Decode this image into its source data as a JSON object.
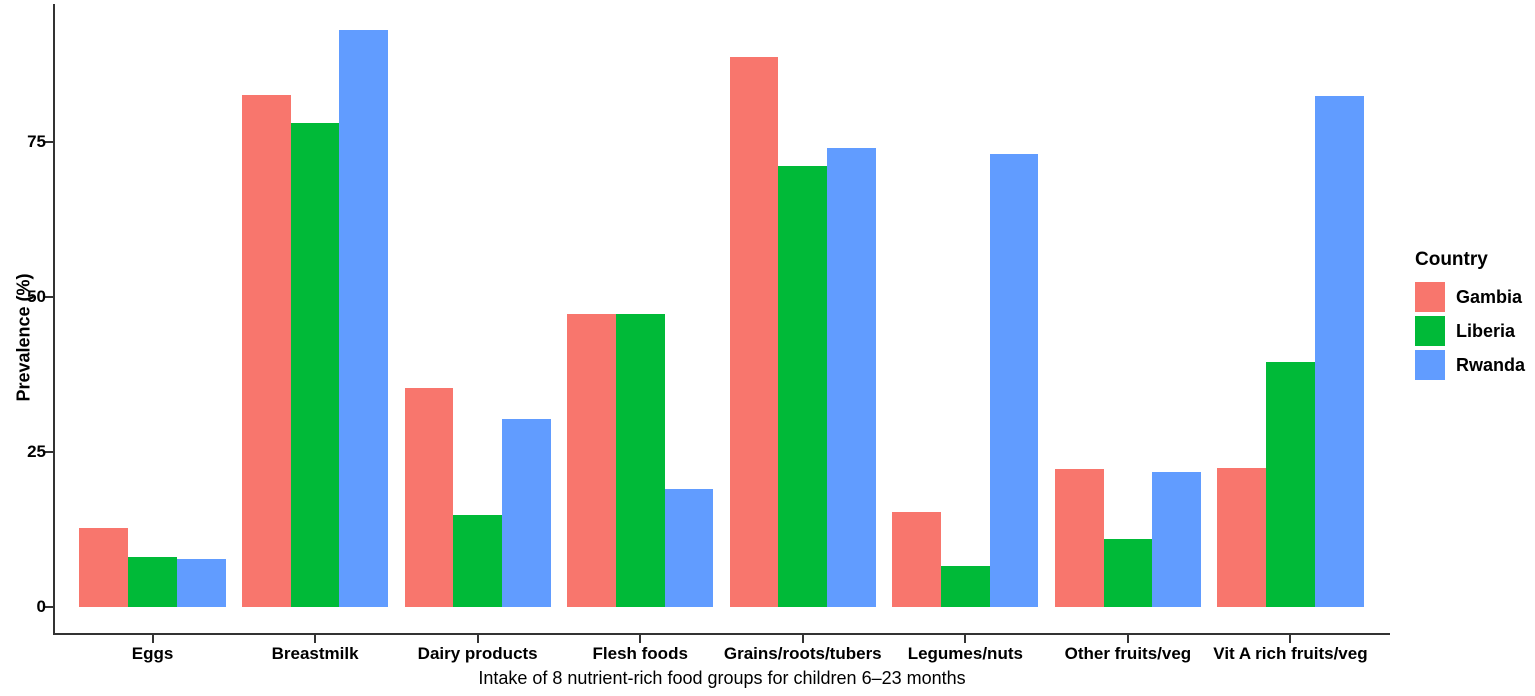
{
  "chart_data": {
    "type": "bar",
    "title": "",
    "xlabel": "Intake of 8 nutrient-rich food groups for children 6–23 months",
    "ylabel": "Prevalence (%)",
    "categories": [
      "Eggs",
      "Breastmilk",
      "Dairy products",
      "Flesh foods",
      "Grains/roots/tubers",
      "Legumes/nuts",
      "Other fruits/veg",
      "Vit A rich fruits/veg"
    ],
    "series": [
      {
        "name": "Gambia",
        "color": "#F8766D",
        "values": [
          12.8,
          82.6,
          35.4,
          47.2,
          88.7,
          15.3,
          22.2,
          22.4
        ]
      },
      {
        "name": "Liberia",
        "color": "#00BA38",
        "values": [
          8.1,
          78.0,
          14.8,
          47.2,
          71.2,
          6.6,
          11.0,
          39.5
        ]
      },
      {
        "name": "Rwanda",
        "color": "#619CFF",
        "values": [
          7.7,
          93.0,
          30.3,
          19.0,
          74.0,
          73.1,
          21.7,
          82.4
        ]
      }
    ],
    "yticks": [
      0,
      25,
      50,
      75
    ],
    "ylim": [
      0,
      97
    ],
    "grid": false,
    "legend_title": "Country",
    "legend_position": "right",
    "legend_entries": [
      "Gambia",
      "Liberia",
      "Rwanda"
    ],
    "axis_color": "#333333",
    "text_color": "#000000"
  }
}
